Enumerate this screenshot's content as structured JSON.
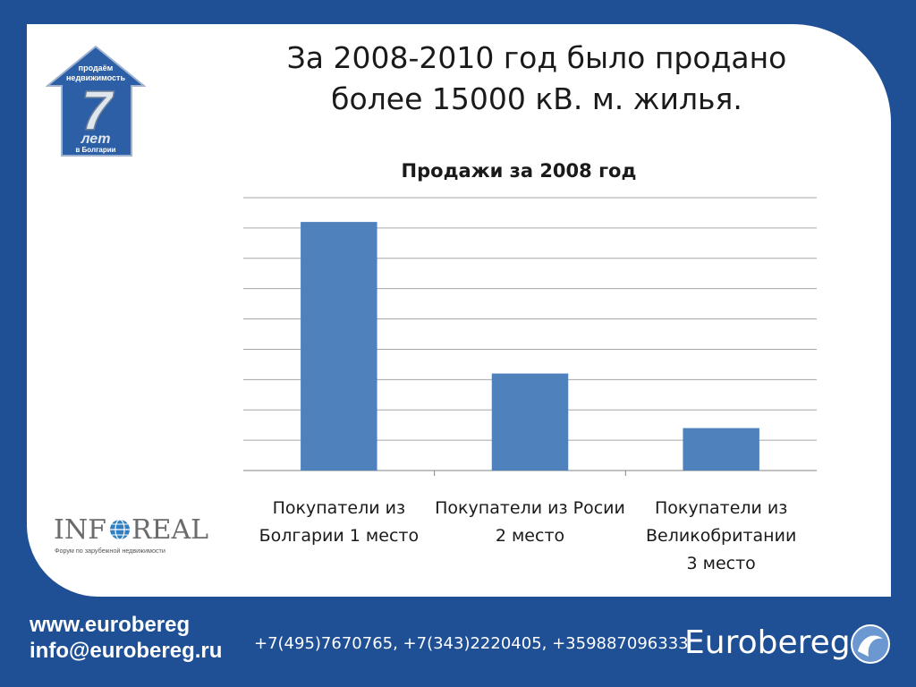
{
  "headline": {
    "line1": "За 2008-2010 год было продано",
    "line2": "более 15000 кВ. м. жилья."
  },
  "logo_house": {
    "top_text_1": "продаём",
    "top_text_2": "недвижимость",
    "number": "7",
    "word": "лет",
    "sub": "в Болгарии"
  },
  "logo_inforeal": {
    "name_left": "INF",
    "name_right": "REAL",
    "tagline": "Форум по зарубежной недвижимости"
  },
  "footer": {
    "site": "www.eurobereg",
    "email": "info@eurobereg.ru",
    "phones": "+7(495)7670765, +7(343)2220405, +359887096333",
    "brand": "Eurobereg"
  },
  "colors": {
    "background": "#1f4f95",
    "bar": "#4f81bd",
    "grid": "#a6a6a6"
  },
  "chart_data": {
    "type": "bar",
    "title": "Продажи за 2008 год",
    "categories": [
      [
        "Покупатели из",
        "Болгарии 1 место"
      ],
      [
        "Покупатели из Росии",
        "2 место"
      ],
      [
        "Покупатели из",
        "Великобритании",
        "3 место"
      ]
    ],
    "values": [
      8.2,
      3.2,
      1.4
    ],
    "ylim": [
      0,
      9
    ],
    "grid": true,
    "gridlines": 9,
    "legend": "none"
  }
}
